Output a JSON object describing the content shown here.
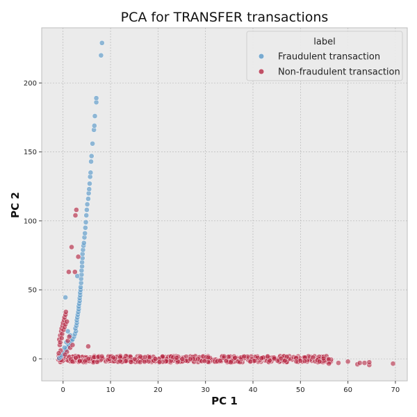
{
  "chart_data": {
    "type": "scatter",
    "title": "PCA for TRANSFER transactions",
    "xlabel": "PC 1",
    "ylabel": "PC 2",
    "xlim": [
      -4.5,
      72.5
    ],
    "ylim": [
      -16,
      240
    ],
    "xticks": [
      0,
      10,
      20,
      30,
      40,
      50,
      60,
      70
    ],
    "yticks": [
      0,
      50,
      100,
      150,
      200
    ],
    "grid": true,
    "legend": {
      "title": "label",
      "position": "top-right"
    },
    "colors": {
      "fraud": "#5b9ac9",
      "nonfraud": "#b52a45",
      "background": "#ebebeb",
      "grid": "#b0b0b0"
    },
    "series": [
      {
        "name": "Fraudulent transaction",
        "color": "#5b9ac9",
        "points": [
          [
            -0.8,
            0.5
          ],
          [
            -0.5,
            1.5
          ],
          [
            -0.3,
            2.5
          ],
          [
            0.0,
            3.5
          ],
          [
            0.2,
            4.5
          ],
          [
            0.4,
            5.5
          ],
          [
            0.6,
            6.5
          ],
          [
            0.8,
            7.5
          ],
          [
            1.0,
            9.0
          ],
          [
            1.2,
            10.0
          ],
          [
            1.5,
            11.5
          ],
          [
            1.8,
            13.0
          ],
          [
            2.0,
            14.0
          ],
          [
            2.3,
            16.0
          ],
          [
            2.5,
            18.0
          ],
          [
            2.7,
            20.0
          ],
          [
            2.6,
            22.0
          ],
          [
            2.8,
            24.0
          ],
          [
            2.9,
            26.0
          ],
          [
            2.9,
            28.0
          ],
          [
            3.0,
            30.0
          ],
          [
            3.1,
            32.0
          ],
          [
            3.2,
            34.0
          ],
          [
            3.3,
            36.0
          ],
          [
            3.3,
            38.0
          ],
          [
            3.4,
            40.0
          ],
          [
            3.5,
            42.0
          ],
          [
            3.5,
            44.0
          ],
          [
            3.6,
            46.0
          ],
          [
            3.6,
            48.0
          ],
          [
            3.7,
            50.0
          ],
          [
            3.7,
            52.0
          ],
          [
            3.8,
            55.0
          ],
          [
            3.8,
            58.0
          ],
          [
            3.9,
            61.0
          ],
          [
            3.9,
            64.0
          ],
          [
            4.0,
            67.0
          ],
          [
            4.0,
            70.0
          ],
          [
            4.1,
            73.0
          ],
          [
            4.1,
            76.0
          ],
          [
            4.2,
            79.0
          ],
          [
            4.3,
            82.0
          ],
          [
            4.4,
            84.0
          ],
          [
            4.5,
            88.0
          ],
          [
            4.6,
            91.0
          ],
          [
            4.7,
            95.0
          ],
          [
            4.8,
            99.0
          ],
          [
            4.9,
            104.0
          ],
          [
            5.0,
            108.0
          ],
          [
            5.1,
            112.0
          ],
          [
            5.3,
            116.0
          ],
          [
            5.4,
            120.0
          ],
          [
            5.5,
            123.0
          ],
          [
            5.6,
            127.0
          ],
          [
            5.7,
            132.0
          ],
          [
            5.8,
            135.0
          ],
          [
            5.9,
            143.0
          ],
          [
            6.0,
            147.0
          ],
          [
            6.2,
            156.0
          ],
          [
            6.5,
            166.0
          ],
          [
            6.6,
            169.0
          ],
          [
            6.7,
            176.0
          ],
          [
            7.0,
            186.0
          ],
          [
            7.0,
            189.0
          ],
          [
            8.0,
            220.0
          ],
          [
            8.2,
            229.0
          ],
          [
            0.5,
            44.5
          ],
          [
            1.0,
            20.0
          ],
          [
            1.5,
            17.0
          ],
          [
            0.3,
            8.0
          ],
          [
            0.7,
            12.0
          ],
          [
            3.0,
            60.0
          ]
        ]
      },
      {
        "name": "Non-fraudulent transaction",
        "color": "#b52a45",
        "points": [
          [
            -0.5,
            6.0
          ],
          [
            -0.7,
            10.0
          ],
          [
            -0.8,
            14.0
          ],
          [
            -0.6,
            17.0
          ],
          [
            -0.4,
            20.0
          ],
          [
            -0.3,
            22.0
          ],
          [
            -0.1,
            24.0
          ],
          [
            0.0,
            26.0
          ],
          [
            0.2,
            28.0
          ],
          [
            0.3,
            30.0
          ],
          [
            0.5,
            32.0
          ],
          [
            0.6,
            34.0
          ],
          [
            -0.2,
            18.0
          ],
          [
            0.1,
            21.0
          ],
          [
            0.3,
            23.0
          ],
          [
            0.5,
            25.0
          ],
          [
            0.8,
            27.0
          ],
          [
            -0.6,
            12.0
          ],
          [
            -0.3,
            15.0
          ],
          [
            1.0,
            13.0
          ],
          [
            1.3,
            16.0
          ],
          [
            0.8,
            5.0
          ],
          [
            1.5,
            8.0
          ],
          [
            2.0,
            10.0
          ],
          [
            1.2,
            63.0
          ],
          [
            2.5,
            63.0
          ],
          [
            1.8,
            81.0
          ],
          [
            3.2,
            74.0
          ],
          [
            2.6,
            104.0
          ],
          [
            2.8,
            108.0
          ],
          [
            5.3,
            9.0
          ],
          [
            -0.9,
            4.0
          ],
          [
            0.4,
            3.0
          ]
        ]
      }
    ]
  }
}
